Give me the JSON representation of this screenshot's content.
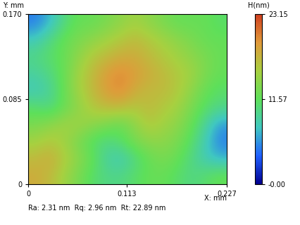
{
  "chart_data": {
    "type": "heatmap",
    "x_label": "X: mm",
    "y_label": "Y: mm",
    "colorbar_label": "H(nm)",
    "annotation": "Ra: 2.31 nm  Rq: 2.96 nm  Rt: 22.89 nm",
    "xlim": [
      0,
      0.227
    ],
    "ylim": [
      0,
      0.17
    ],
    "xticks": [
      0,
      0.113,
      0.227
    ],
    "yticks": [
      0,
      0.085,
      {
        "value": 0.17,
        "label": "0.170"
      }
    ],
    "colorbar_range": [
      0,
      23.15
    ],
    "colorbar_ticks": [
      {
        "value": 0,
        "label": "-0.00"
      },
      11.57,
      23.15
    ],
    "cells": [
      [
        5,
        7,
        10,
        12,
        12,
        13,
        14,
        15,
        14,
        13,
        12,
        12,
        12,
        11
      ],
      [
        8,
        10,
        12,
        13,
        14,
        15,
        16,
        17,
        16,
        15,
        14,
        13,
        12,
        12
      ],
      [
        10,
        11,
        12,
        14,
        16,
        17,
        18,
        18,
        17,
        16,
        15,
        14,
        13,
        12
      ],
      [
        9,
        10,
        12,
        15,
        17,
        19,
        20,
        19,
        18,
        17,
        16,
        15,
        13,
        12
      ],
      [
        8,
        9,
        12,
        15,
        17,
        19,
        20,
        18,
        17,
        17,
        16,
        14,
        12,
        11
      ],
      [
        11,
        10,
        12,
        14,
        16,
        17,
        17,
        16,
        17,
        16,
        15,
        13,
        11,
        10
      ],
      [
        13,
        14,
        15,
        15,
        14,
        13,
        12,
        14,
        16,
        15,
        14,
        12,
        9,
        6
      ],
      [
        15,
        16,
        15,
        13,
        11,
        10,
        11,
        13,
        14,
        14,
        13,
        11,
        8,
        5
      ],
      [
        17,
        18,
        16,
        14,
        12,
        9,
        8,
        10,
        12,
        13,
        12,
        10,
        8,
        7
      ],
      [
        18,
        17,
        15,
        13,
        11,
        10,
        10,
        11,
        12,
        12,
        11,
        10,
        11,
        12
      ]
    ]
  }
}
